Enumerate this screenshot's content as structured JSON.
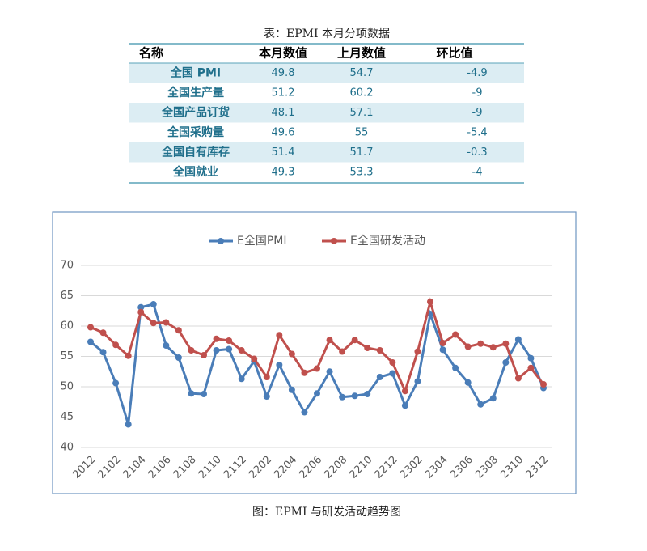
{
  "table": {
    "title": "表：EPMI 本月分项数据",
    "header": [
      "名称",
      "本月数值",
      "上月数值",
      "环比值"
    ],
    "rows": [
      [
        "全国 PMI",
        49.8,
        54.7,
        -4.9
      ],
      [
        "全国生产量",
        51.2,
        60.2,
        -9
      ],
      [
        "全国产品订货",
        48.1,
        57.1,
        -9
      ],
      [
        "全国采购量",
        49.6,
        55,
        -5.4
      ],
      [
        "全国自有库存",
        51.4,
        51.7,
        -0.3
      ],
      [
        "全国就业",
        49.3,
        53.3,
        -4
      ]
    ]
  },
  "chart_data": {
    "type": "line",
    "categories": [
      "2012",
      null,
      "2102",
      null,
      "2104",
      null,
      "2106",
      null,
      "2108",
      null,
      "2110",
      null,
      "2112",
      null,
      "2202",
      null,
      "2204",
      null,
      "2206",
      null,
      "2208",
      null,
      "2210",
      null,
      "2212",
      null,
      "2302",
      null,
      "2304",
      null,
      "2306",
      null,
      "2308",
      null,
      "2310",
      null,
      "2312"
    ],
    "series": [
      {
        "name": "E全国PMI",
        "color": "#4a7db8",
        "values": [
          57.4,
          55.7,
          50.6,
          43.8,
          63.1,
          63.6,
          56.8,
          54.8,
          48.9,
          48.8,
          56.0,
          56.2,
          51.3,
          54.2,
          48.4,
          53.6,
          49.5,
          45.8,
          48.9,
          52.5,
          48.3,
          48.5,
          48.8,
          51.6,
          52.2,
          46.9,
          50.9,
          62.0,
          56.1,
          53.1,
          50.7,
          47.1,
          48.1,
          54.0,
          57.8,
          54.7,
          49.8
        ]
      },
      {
        "name": "E全国研发活动",
        "color": "#c0504d",
        "values": [
          59.8,
          58.9,
          56.9,
          55.1,
          62.3,
          60.5,
          60.6,
          59.3,
          56.0,
          55.2,
          57.9,
          57.6,
          56.0,
          54.6,
          51.6,
          58.5,
          55.4,
          52.3,
          53.0,
          57.7,
          55.8,
          57.7,
          56.4,
          56.0,
          54.0,
          49.3,
          55.8,
          64.0,
          57.2,
          58.6,
          56.6,
          57.1,
          56.5,
          57.1,
          51.4,
          53.1,
          50.4
        ]
      }
    ],
    "ylim": [
      40,
      70
    ],
    "yticks": [
      40,
      45,
      50,
      55,
      60,
      65,
      70
    ],
    "grid": true,
    "legend": "top"
  },
  "caption": "图：EPMI 与研发活动趋势图"
}
